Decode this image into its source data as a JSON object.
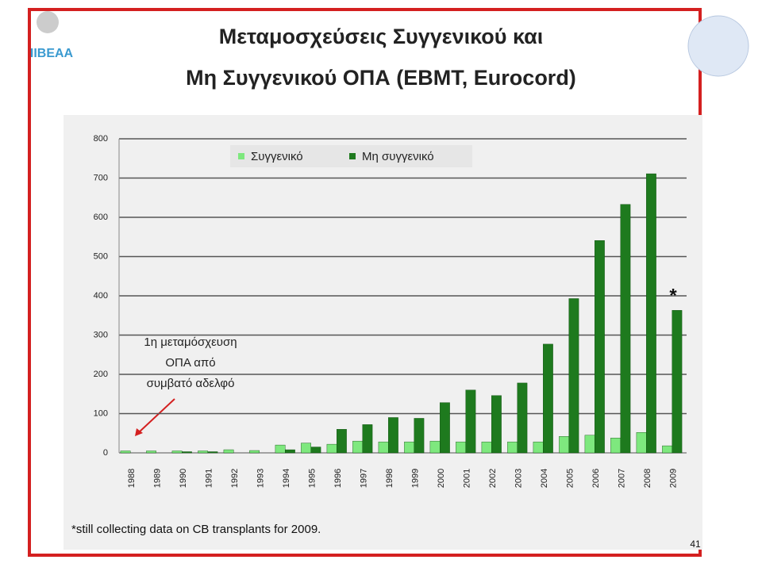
{
  "chart_data": {
    "type": "bar",
    "title_lines": [
      "Μεταμοσχεύσεις Συγγενικού και",
      "Μη Συγγενικού ΟΠΑ (EBMT, Eurocord)"
    ],
    "categories": [
      "1988",
      "1989",
      "1990",
      "1991",
      "1992",
      "1993",
      "1994",
      "1995",
      "1996",
      "1997",
      "1998",
      "1999",
      "2000",
      "2001",
      "2002",
      "2003",
      "2004",
      "2005",
      "2006",
      "2007",
      "2008",
      "2009"
    ],
    "series": [
      {
        "name": "Συγγενικό",
        "color": "#7ee87e",
        "values": [
          5,
          5,
          5,
          5,
          8,
          6,
          20,
          25,
          22,
          30,
          28,
          28,
          30,
          28,
          28,
          28,
          28,
          42,
          45,
          38,
          52,
          18
        ]
      },
      {
        "name": "Μη συγγενικό",
        "color": "#1e7a1e",
        "values": [
          0,
          0,
          3,
          3,
          0,
          0,
          8,
          15,
          60,
          72,
          90,
          88,
          128,
          160,
          146,
          178,
          277,
          393,
          541,
          633,
          711,
          363
        ]
      }
    ],
    "ylim": [
      0,
      800
    ],
    "yticks": [
      0,
      100,
      200,
      300,
      400,
      500,
      600,
      700,
      800
    ],
    "grid": true,
    "annotation_lines": [
      "1η μεταμόσχευση",
      "ΟΠΑ από",
      "συμβατό αδελφό"
    ],
    "marker": "*",
    "footnote": "*still collecting data on CB transplants for 2009."
  },
  "logo_text": "IIBEAA",
  "page_number": "41"
}
